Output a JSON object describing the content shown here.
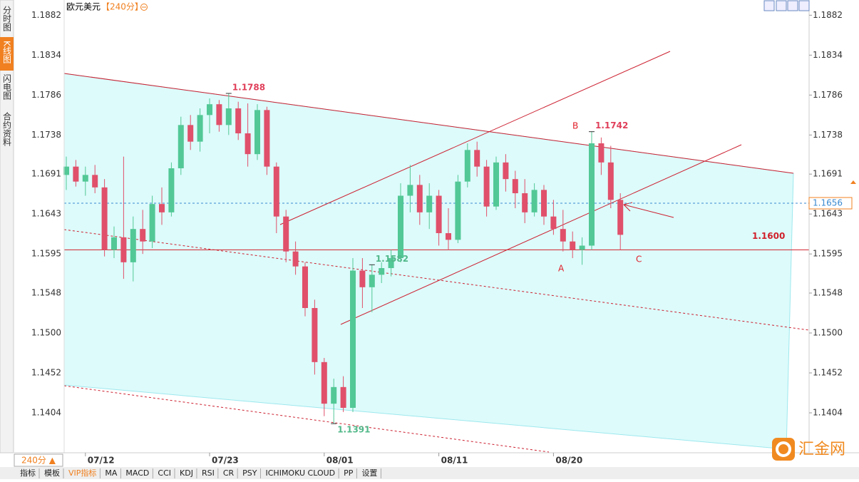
{
  "header": {
    "sidebar_tabs": [
      "分时图",
      "K线图",
      "闪电图",
      "合约资料"
    ],
    "period_button": "240分 ▲",
    "toolbar_tabs": [
      "指标",
      "模板",
      "VIP指标",
      "MA",
      "MACD",
      "CCI",
      "KDJ",
      "RSI",
      "CR",
      "PSY",
      "ICHIMOKU CLOUD",
      "PP",
      "设置"
    ],
    "logo": "汇金网"
  },
  "chart_data": {
    "type": "candlestick",
    "title": "欧元美元",
    "subtitle": "【240分】",
    "categories": [
      null,
      null,
      "07/12",
      null,
      null,
      null,
      null,
      null,
      null,
      null,
      null,
      null,
      null,
      null,
      null,
      "07/23",
      null,
      null,
      null,
      null,
      null,
      null,
      null,
      null,
      null,
      null,
      null,
      "08/01",
      null,
      null,
      null,
      null,
      null,
      null,
      null,
      null,
      null,
      null,
      null,
      "08/11",
      null,
      null,
      null,
      null,
      null,
      null,
      null,
      null,
      null,
      null,
      null,
      "08/20",
      null,
      null,
      null,
      null,
      null,
      null,
      null
    ],
    "open": [
      1.169,
      1.17,
      1.1682,
      1.169,
      1.1675,
      1.16,
      1.1615,
      1.1585,
      1.1625,
      1.161,
      1.1655,
      1.1645,
      1.1698,
      1.175,
      1.173,
      1.1762,
      1.1775,
      1.175,
      1.177,
      1.174,
      1.1715,
      1.1768,
      1.17,
      1.164,
      1.1598,
      1.158,
      1.153,
      1.1465,
      1.1415,
      1.1435,
      1.141,
      1.1575,
      1.1555,
      1.157,
      1.1578,
      1.159,
      1.1665,
      1.1678,
      1.1645,
      1.1665,
      1.162,
      1.1612,
      1.1682,
      1.172,
      1.17,
      1.1652,
      1.1705,
      1.1685,
      1.1668,
      1.1645,
      1.1672,
      1.164,
      1.1625,
      1.161,
      1.16,
      1.1605,
      1.1728,
      1.1705,
      1.166
    ],
    "high": [
      1.1712,
      1.1708,
      1.17,
      1.1702,
      1.1685,
      1.1628,
      1.1712,
      1.164,
      1.1648,
      1.1665,
      1.1675,
      1.1705,
      1.176,
      1.1762,
      1.177,
      1.1782,
      1.178,
      1.1788,
      1.1778,
      1.1776,
      1.1775,
      1.1772,
      1.1705,
      1.1648,
      1.161,
      1.1585,
      1.154,
      1.147,
      1.1445,
      1.1448,
      1.159,
      1.159,
      1.1582,
      1.1585,
      1.16,
      1.168,
      1.1702,
      1.169,
      1.168,
      1.1672,
      1.165,
      1.169,
      1.1728,
      1.173,
      1.1708,
      1.1712,
      1.1715,
      1.1695,
      1.1685,
      1.168,
      1.1678,
      1.166,
      1.1648,
      1.1622,
      1.1615,
      1.1742,
      1.1735,
      1.1725,
      1.1668
    ],
    "low": [
      1.1672,
      1.1676,
      1.1665,
      1.1668,
      1.1592,
      1.159,
      1.1565,
      1.1562,
      1.1595,
      1.1602,
      1.163,
      1.164,
      1.169,
      1.172,
      1.1718,
      1.174,
      1.1742,
      1.1738,
      1.1732,
      1.17,
      1.1708,
      1.169,
      1.162,
      1.1585,
      1.157,
      1.152,
      1.145,
      1.14,
      1.1391,
      1.1405,
      1.1405,
      1.153,
      1.1525,
      1.156,
      1.1568,
      1.1585,
      1.1645,
      1.163,
      1.1625,
      1.1605,
      1.16,
      1.1608,
      1.1675,
      1.1688,
      1.164,
      1.1648,
      1.167,
      1.165,
      1.1632,
      1.164,
      1.163,
      1.1618,
      1.1598,
      1.159,
      1.1582,
      1.16,
      1.169,
      1.165,
      1.16
    ],
    "close": [
      1.17,
      1.1682,
      1.169,
      1.1675,
      1.16,
      1.1615,
      1.1585,
      1.1625,
      1.161,
      1.1655,
      1.1645,
      1.1698,
      1.175,
      1.173,
      1.1762,
      1.1775,
      1.175,
      1.177,
      1.174,
      1.1715,
      1.1768,
      1.17,
      1.164,
      1.1598,
      1.158,
      1.153,
      1.1465,
      1.1415,
      1.1435,
      1.141,
      1.1575,
      1.1555,
      1.157,
      1.1578,
      1.159,
      1.1665,
      1.1678,
      1.1645,
      1.1665,
      1.162,
      1.1612,
      1.1682,
      1.172,
      1.17,
      1.1652,
      1.1705,
      1.1685,
      1.1668,
      1.1645,
      1.1672,
      1.164,
      1.1625,
      1.161,
      1.16,
      1.1605,
      1.1728,
      1.1705,
      1.166,
      1.1618
    ],
    "up_color": "#52c896",
    "down_color": "#e0506a",
    "ylim": [
      1.1356,
      1.1896
    ],
    "yticks": [
      1.1882,
      1.1834,
      1.1786,
      1.1738,
      1.1691,
      1.1643,
      1.1595,
      1.1548,
      {
        "value": 1.15,
        "label": "1.1500"
      },
      1.1452,
      1.1404
    ],
    "levels": [
      {
        "value": 1.16,
        "label": "1.1600",
        "color": "#d0202a"
      },
      {
        "value": 1.1656,
        "label": "1.1656",
        "color": "#3a8ad0"
      }
    ],
    "annotations": [
      {
        "value": 1.1788,
        "color": "#e0405a"
      },
      {
        "value": 1.1742,
        "color": "#e0405a"
      },
      {
        "value": 1.1582,
        "color": "#52b88a"
      },
      {
        "value": 1.1391,
        "color": "#52b88a"
      }
    ],
    "points": [
      "A",
      "B",
      "C"
    ]
  }
}
